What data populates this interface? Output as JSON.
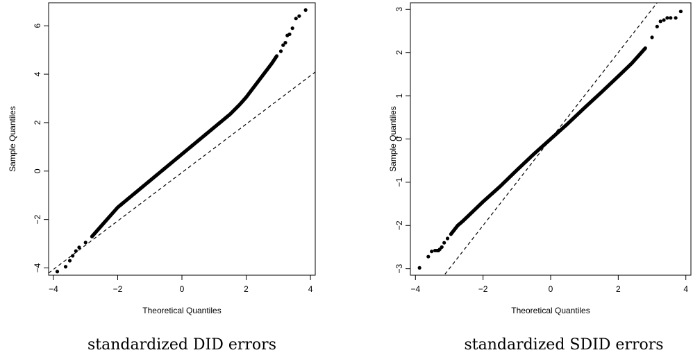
{
  "chart_data": [
    {
      "type": "scatter",
      "subtype": "qq-plot",
      "caption": "standardized DID errors",
      "xlabel": "Theoretical Quantiles",
      "ylabel": "Sample Quantiles",
      "xlim": [
        -4.15,
        4.15
      ],
      "ylim": [
        -4.3,
        6.95
      ],
      "xticks": [
        -4,
        -2,
        0,
        2,
        4
      ],
      "xtick_labels": [
        "−4",
        "−2",
        "0",
        "2",
        "4"
      ],
      "yticks": [
        -4,
        -2,
        0,
        2,
        4,
        6
      ],
      "ytick_labels": [
        "−4",
        "−2",
        "0",
        "2",
        "4",
        "6"
      ],
      "grid": false,
      "reference_line": {
        "style": "dashed",
        "intercept": -0.06,
        "slope": 1.0
      },
      "series": [
        {
          "x": [
            -3.88,
            -3.62,
            -3.49,
            -3.4,
            -3.3,
            -3.2,
            -3.0,
            -2.8,
            -2.6,
            -2.4,
            -2.2,
            -2.0,
            -1.5,
            -1.0,
            -0.5,
            0.0,
            0.5,
            1.0,
            1.5,
            1.8,
            2.0,
            2.2,
            2.4,
            2.6,
            2.8,
            2.95,
            3.08,
            3.15,
            3.22,
            3.28,
            3.35,
            3.44,
            3.55,
            3.65,
            3.85
          ],
          "y": [
            -4.15,
            -3.95,
            -3.7,
            -3.5,
            -3.3,
            -3.15,
            -2.95,
            -2.7,
            -2.4,
            -2.1,
            -1.8,
            -1.5,
            -0.95,
            -0.4,
            0.15,
            0.7,
            1.25,
            1.8,
            2.35,
            2.75,
            3.05,
            3.4,
            3.75,
            4.1,
            4.45,
            4.75,
            4.95,
            5.2,
            5.3,
            5.6,
            5.65,
            5.9,
            6.3,
            6.4,
            6.65
          ]
        }
      ]
    },
    {
      "type": "scatter",
      "subtype": "qq-plot",
      "caption": "standardized SDID errors",
      "xlabel": "Theoretical Quantiles",
      "ylabel": "Sample Quantiles",
      "xlim": [
        -4.15,
        4.15
      ],
      "ylim": [
        -3.15,
        3.15
      ],
      "xticks": [
        -4,
        -2,
        0,
        2,
        4
      ],
      "xtick_labels": [
        "−4",
        "−2",
        "0",
        "2",
        "4"
      ],
      "yticks": [
        -3,
        -2,
        -1,
        0,
        1,
        2,
        3
      ],
      "ytick_labels": [
        "−3",
        "−2",
        "−1",
        "0",
        "1",
        "2",
        "3"
      ],
      "grid": false,
      "reference_line": {
        "style": "dashed",
        "intercept": 0.0,
        "slope": 1.0
      },
      "series": [
        {
          "x": [
            -3.88,
            -3.62,
            -3.52,
            -3.42,
            -3.36,
            -3.32,
            -3.28,
            -3.22,
            -3.15,
            -3.05,
            -2.95,
            -2.85,
            -2.75,
            -2.6,
            -2.4,
            -2.2,
            -2.0,
            -1.5,
            -1.0,
            -0.5,
            0.0,
            0.5,
            1.0,
            1.5,
            2.0,
            2.4,
            2.8,
            3.0,
            3.15,
            3.25,
            3.35,
            3.45,
            3.55,
            3.7,
            3.85
          ],
          "y": [
            -2.98,
            -2.72,
            -2.6,
            -2.58,
            -2.58,
            -2.58,
            -2.55,
            -2.5,
            -2.4,
            -2.3,
            -2.2,
            -2.1,
            -2.0,
            -1.9,
            -1.75,
            -1.6,
            -1.45,
            -1.1,
            -0.72,
            -0.35,
            0.0,
            0.35,
            0.72,
            1.08,
            1.45,
            1.75,
            2.1,
            2.35,
            2.6,
            2.72,
            2.75,
            2.8,
            2.8,
            2.8,
            2.95
          ]
        }
      ]
    }
  ]
}
